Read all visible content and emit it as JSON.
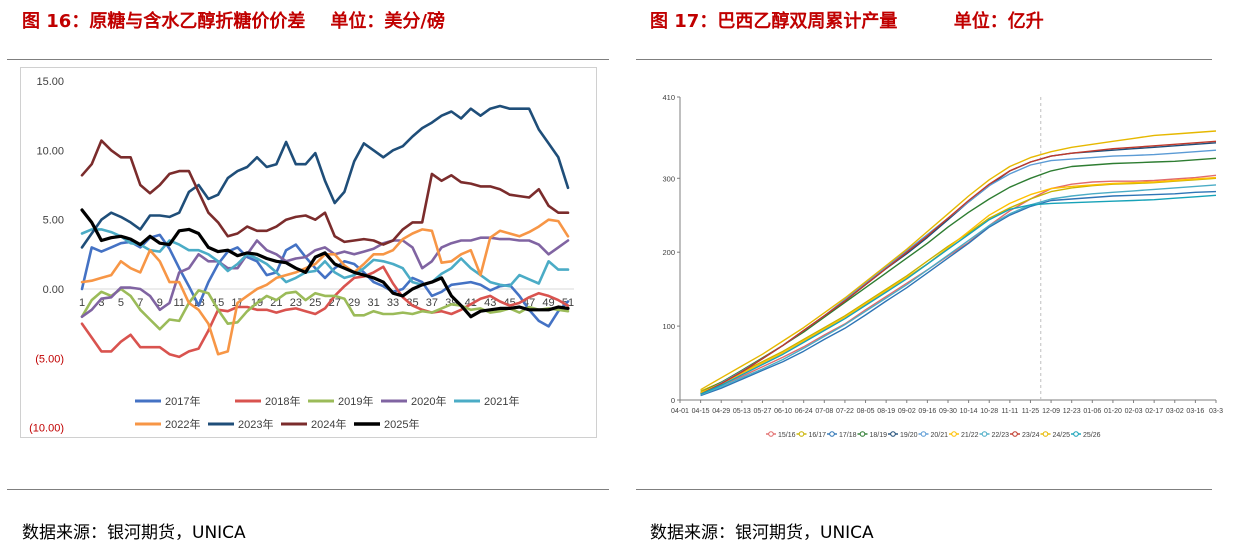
{
  "left": {
    "title": "图 16：原糖与含水乙醇折糖价价差    单位：美分/磅",
    "source": "数据来源：银河期货，UNICA"
  },
  "right": {
    "title": "图 17：巴西乙醇双周累计产量         单位：亿升",
    "source": "数据来源：银河期货，UNICA"
  },
  "chart_data": [
    {
      "type": "line",
      "title": "原糖与含水乙醇折糖价价差",
      "unit": "美分/磅",
      "ylim": [
        -10,
        15
      ],
      "yticks": [
        15,
        10,
        5,
        0,
        -5,
        -10
      ],
      "ytick_labels": [
        "15.00",
        "10.00",
        "5.00",
        "0.00",
        "(5.00)",
        "(10.00)"
      ],
      "categories": [
        "1",
        "3",
        "5",
        "7",
        "9",
        "11",
        "13",
        "15",
        "17",
        "19",
        "21",
        "23",
        "25",
        "27",
        "29",
        "31",
        "33",
        "35",
        "37",
        "39",
        "41",
        "43",
        "45",
        "47",
        "49",
        "51"
      ],
      "x": [
        1,
        2,
        3,
        4,
        5,
        6,
        7,
        8,
        9,
        10,
        11,
        12,
        13,
        14,
        15,
        16,
        17,
        18,
        19,
        20,
        21,
        22,
        23,
        24,
        25,
        26,
        27,
        28,
        29,
        30,
        31,
        32,
        33,
        34,
        35,
        36,
        37,
        38,
        39,
        40,
        41,
        42,
        43,
        44,
        45,
        46,
        47,
        48,
        49,
        50,
        51
      ],
      "legend_position": "bottom",
      "series": [
        {
          "name": "2017年",
          "color": "#4472c4",
          "values": [
            0,
            3,
            2.7,
            3,
            3.3,
            3.4,
            3,
            3.7,
            3.9,
            2.9,
            1.5,
            0.2,
            -1.2,
            0.5,
            1.8,
            2.7,
            3,
            2.3,
            2,
            1,
            1.2,
            2.8,
            3.2,
            2.3,
            1.5,
            0.8,
            1.5,
            2,
            1.8,
            1.2,
            0.5,
            0.2,
            -0.2,
            0,
            0.8,
            0.5,
            -0.5,
            -0.2,
            0.3,
            0.4,
            0.5,
            0.3,
            -0.1,
            0.2,
            0.3,
            -0.5,
            -1.5,
            -2.3,
            -2.7,
            -1.6,
            -0.9
          ]
        },
        {
          "name": "2018年",
          "color": "#d9534f",
          "values": [
            -2.5,
            -3.5,
            -4.5,
            -4.5,
            -3.8,
            -3.3,
            -4.2,
            -4.2,
            -4.2,
            -4.7,
            -4.9,
            -4.5,
            -4.3,
            -3,
            -1.5,
            -1.6,
            -1.3,
            -1.3,
            -1.5,
            -1.5,
            -1.7,
            -1.5,
            -1.4,
            -1.6,
            -1.8,
            -1.4,
            -0.5,
            0.2,
            0.8,
            0.9,
            1.2,
            1.6,
            0.4,
            -0.6,
            -1.2,
            -1.5,
            -1.7,
            -1.6,
            -1.8,
            -1.5,
            -1.1,
            -0.7,
            -0.5,
            -0.9,
            -1.2,
            -1,
            -0.6,
            -0.3,
            -0.5,
            -0.8,
            -1.2
          ]
        },
        {
          "name": "2019年",
          "color": "#9bbb59",
          "values": [
            -2,
            -0.8,
            -0.2,
            -0.5,
            0,
            -0.5,
            -1.5,
            -2.2,
            -2.9,
            -2.2,
            -2.3,
            -1,
            -0.1,
            -0.3,
            -1.5,
            -2.5,
            -2.4,
            -1.6,
            -1,
            -0.5,
            -0.8,
            -0.3,
            -0.2,
            -0.8,
            -0.3,
            -0.5,
            -0.5,
            -0.7,
            -1.9,
            -1.9,
            -1.6,
            -1.8,
            -1.8,
            -1.7,
            -1.8,
            -1.6,
            -1.7,
            -1.4,
            -1.1,
            -1.2,
            -1.5,
            -1.4,
            -1.7,
            -1.6,
            -1.4,
            -1.7,
            -1.3,
            -1.5,
            -1.4,
            -1.5,
            -1.6
          ]
        },
        {
          "name": "2020年",
          "color": "#8064a2",
          "values": [
            -2,
            -1.5,
            -0.7,
            -0.6,
            0.1,
            0.1,
            0,
            -0.5,
            -1.5,
            -1,
            1.2,
            1.5,
            2.5,
            2,
            2,
            1.5,
            1.5,
            2.5,
            3.5,
            2.8,
            2.5,
            2,
            2.2,
            2.3,
            2.8,
            3,
            2.5,
            2.7,
            2.5,
            2.7,
            2.9,
            3.3,
            3.5,
            3.5,
            3,
            1.5,
            2,
            3,
            3.3,
            3.5,
            3.5,
            3.7,
            3.7,
            3.6,
            3.6,
            3.5,
            3.5,
            3.2,
            2.5,
            3,
            3.5
          ]
        },
        {
          "name": "2021年",
          "color": "#4bacc6",
          "values": [
            4,
            4.3,
            4.3,
            4.1,
            3.8,
            3.3,
            3.2,
            2.8,
            2.7,
            3.5,
            3.2,
            2.8,
            2.8,
            2.5,
            2,
            1.3,
            1.8,
            2.5,
            2.2,
            1.8,
            1.2,
            0.5,
            0.8,
            1.2,
            1.3,
            2,
            1.2,
            0.8,
            1,
            1.5,
            2.1,
            2,
            1.8,
            1.5,
            0.5,
            0.3,
            0.5,
            1.1,
            1.5,
            2.2,
            1.5,
            1,
            0.5,
            0.3,
            0.2,
            1,
            0.7,
            0.4,
            2,
            1.4,
            1.4
          ]
        },
        {
          "name": "2022年",
          "color": "#f79646",
          "values": [
            0.5,
            0.6,
            0.8,
            1,
            2,
            1.5,
            1.2,
            2.8,
            2,
            0.5,
            0.5,
            -1,
            -1.5,
            -2.5,
            -4.7,
            -4.5,
            -1,
            -0.5,
            0,
            0.3,
            0.8,
            1,
            1.2,
            1.5,
            1.8,
            2.5,
            2.5,
            1.7,
            1.2,
            1.8,
            2.5,
            2.5,
            2.8,
            3.6,
            4,
            4.3,
            4.2,
            1.9,
            2,
            2.5,
            2.8,
            1,
            3.7,
            4.2,
            4,
            3.8,
            4.1,
            4.5,
            5,
            4.9,
            3.8
          ]
        },
        {
          "name": "2023年",
          "color": "#1f4e79",
          "values": [
            3,
            4,
            5,
            5.5,
            5.2,
            4.8,
            4.3,
            5.3,
            5.3,
            5.2,
            5.5,
            7,
            7.5,
            6.5,
            6.8,
            8,
            8.5,
            8.8,
            9.5,
            8.8,
            9,
            10.6,
            9,
            9,
            9.8,
            7.8,
            6.2,
            7,
            9.2,
            10.5,
            10,
            9.5,
            10,
            10.3,
            11,
            11.6,
            12,
            12.5,
            12.8,
            12.3,
            13,
            12.5,
            13,
            13.2,
            13,
            13,
            13,
            11.5,
            10.5,
            9.5,
            7.3
          ]
        },
        {
          "name": "2024年",
          "color": "#7b2c2c",
          "values": [
            8.2,
            9,
            10.7,
            10,
            9.5,
            9.5,
            7.5,
            6.9,
            7.5,
            8.3,
            8.5,
            8.5,
            7,
            5.5,
            4.8,
            3.8,
            4,
            4.5,
            4.2,
            4.2,
            4.5,
            5,
            5.2,
            5.3,
            5,
            5.5,
            3.8,
            3.4,
            3.5,
            3.6,
            3.5,
            3.2,
            3.5,
            4.3,
            4.8,
            4.8,
            8.3,
            7.8,
            8.2,
            7.7,
            7.6,
            7.4,
            7.4,
            7.2,
            6.8,
            6.7,
            6.6,
            7.2,
            6,
            5.5,
            5.5
          ]
        },
        {
          "name": "2025年",
          "color": "#000000",
          "values": [
            5.7,
            4.8,
            3.5,
            3.7,
            3.8,
            3.6,
            3.2,
            3.8,
            3.3,
            3.2,
            4.2,
            4.3,
            4,
            3,
            2.7,
            2.8,
            2.4,
            2.6,
            2.5,
            2.2,
            2,
            1.9,
            1.5,
            1.2,
            2.3,
            2.6,
            1.8,
            1.5,
            1.2,
            1,
            0.8,
            0.5,
            -0.3,
            -0.5,
            0,
            0.3,
            0.5,
            0.8,
            -0.5,
            -1.2,
            -2,
            -1.6,
            -1.5,
            -1.4,
            -1.4,
            -1.3,
            -1.5,
            -1.5,
            -1.5,
            -1.3,
            -1.4
          ]
        }
      ]
    },
    {
      "type": "line",
      "title": "巴西乙醇双周累计产量",
      "unit": "亿升",
      "ylim": [
        0,
        410
      ],
      "yticks": [
        0,
        100,
        200,
        300,
        410
      ],
      "ytick_labels": [
        "0",
        "100",
        "200",
        "300",
        "410"
      ],
      "categories": [
        "04-01",
        "04-15",
        "04-29",
        "05-13",
        "05-27",
        "06-10",
        "06-24",
        "07-08",
        "07-22",
        "08-05",
        "08-19",
        "09-02",
        "09-16",
        "09-30",
        "10-14",
        "10-28",
        "11-11",
        "11-25",
        "12-09",
        "12-23",
        "01-06",
        "01-20",
        "02-03",
        "02-17",
        "03-02",
        "03-16",
        "03-3"
      ],
      "marker": "dashed vertical line at 11-25 to 12-09",
      "legend_position": "bottom",
      "series": [
        {
          "name": "15/16",
          "color": "#e26b6b",
          "values": [
            null,
            10,
            20,
            32,
            45,
            58,
            72,
            88,
            103,
            122,
            140,
            158,
            176,
            195,
            213,
            236,
            256,
            272,
            286,
            292,
            295,
            296,
            296,
            297,
            299,
            301,
            304
          ]
        },
        {
          "name": "16/17",
          "color": "#c9b300",
          "values": [
            null,
            12,
            24,
            38,
            52,
            66,
            82,
            98,
            114,
            132,
            150,
            168,
            188,
            208,
            226,
            246,
            260,
            272,
            282,
            287,
            290,
            292,
            293,
            294,
            296,
            298,
            300
          ]
        },
        {
          "name": "17/18",
          "color": "#2e75b6",
          "values": [
            null,
            6,
            16,
            28,
            40,
            52,
            66,
            82,
            97,
            115,
            134,
            152,
            172,
            192,
            212,
            234,
            250,
            262,
            270,
            272,
            274,
            276,
            277,
            278,
            279,
            281,
            282
          ]
        },
        {
          "name": "18/19",
          "color": "#2e7d32",
          "values": [
            null,
            10,
            24,
            40,
            57,
            74,
            92,
            112,
            132,
            152,
            172,
            192,
            212,
            234,
            254,
            272,
            288,
            300,
            310,
            316,
            318,
            320,
            321,
            322,
            323,
            325,
            327
          ]
        },
        {
          "name": "19/20",
          "color": "#1f4e79",
          "values": [
            null,
            8,
            22,
            38,
            56,
            74,
            94,
            114,
            134,
            156,
            178,
            198,
            220,
            244,
            268,
            290,
            310,
            322,
            330,
            334,
            336,
            338,
            340,
            342,
            344,
            346,
            348
          ]
        },
        {
          "name": "20/21",
          "color": "#5b9bd5",
          "values": [
            null,
            9,
            23,
            39,
            56,
            74,
            94,
            114,
            136,
            158,
            180,
            202,
            224,
            246,
            268,
            290,
            306,
            318,
            324,
            326,
            328,
            330,
            331,
            332,
            334,
            336,
            338
          ]
        },
        {
          "name": "21/22",
          "color": "#ffc000",
          "values": [
            null,
            10,
            22,
            36,
            50,
            64,
            80,
            96,
            112,
            130,
            148,
            166,
            184,
            206,
            228,
            250,
            266,
            278,
            286,
            289,
            291,
            293,
            294,
            295,
            297,
            299,
            301
          ]
        },
        {
          "name": "22/23",
          "color": "#4bacc6",
          "values": [
            null,
            7,
            18,
            30,
            42,
            55,
            70,
            86,
            102,
            120,
            138,
            156,
            176,
            196,
            216,
            236,
            252,
            264,
            272,
            276,
            279,
            281,
            283,
            285,
            287,
            289,
            291
          ]
        },
        {
          "name": "23/24",
          "color": "#c0392b",
          "values": [
            null,
            8,
            22,
            38,
            56,
            74,
            94,
            114,
            134,
            156,
            178,
            200,
            222,
            246,
            270,
            292,
            310,
            322,
            330,
            334,
            337,
            340,
            342,
            344,
            346,
            348,
            350
          ]
        },
        {
          "name": "24/25",
          "color": "#e6b800",
          "values": [
            null,
            14,
            30,
            46,
            62,
            80,
            98,
            118,
            138,
            160,
            182,
            204,
            228,
            252,
            276,
            298,
            316,
            328,
            336,
            342,
            346,
            350,
            354,
            358,
            360,
            362,
            364
          ]
        },
        {
          "name": "25/26",
          "color": "#17a2b8",
          "values": [
            null,
            8,
            20,
            34,
            48,
            62,
            78,
            94,
            110,
            128,
            146,
            164,
            184,
            204,
            224,
            244,
            258,
            264,
            266,
            267,
            268,
            269,
            270,
            271,
            273,
            275,
            277
          ]
        }
      ]
    }
  ]
}
